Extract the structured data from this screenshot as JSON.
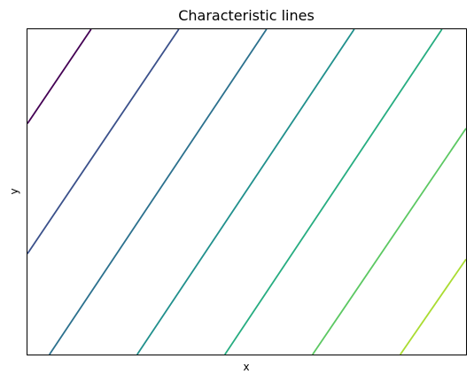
{
  "chart_data": {
    "type": "line",
    "title": "Characteristic lines",
    "xlabel": "x",
    "ylabel": "y",
    "xlim": [
      0,
      10
    ],
    "ylim": [
      0,
      10
    ],
    "xticks_visible": false,
    "yticks_visible": false,
    "grid": false,
    "legend": "none",
    "series": [
      {
        "color": "#440154",
        "x": [
          0,
          1.45
        ],
        "y": [
          7.1,
          10
        ]
      },
      {
        "color": "#3b518b",
        "x": [
          0,
          3.45
        ],
        "y": [
          3.1,
          10
        ]
      },
      {
        "color": "#2c718e",
        "x": [
          0.5,
          5.45
        ],
        "y": [
          0,
          10
        ]
      },
      {
        "color": "#21908d",
        "x": [
          2.5,
          7.45
        ],
        "y": [
          0,
          10
        ]
      },
      {
        "color": "#27ad81",
        "x": [
          4.5,
          9.45
        ],
        "y": [
          0,
          10
        ]
      },
      {
        "color": "#5cc863",
        "x": [
          6.5,
          10
        ],
        "y": [
          0,
          6.95
        ]
      },
      {
        "color": "#aadc32",
        "x": [
          8.5,
          10
        ],
        "y": [
          0,
          2.93
        ]
      }
    ]
  }
}
